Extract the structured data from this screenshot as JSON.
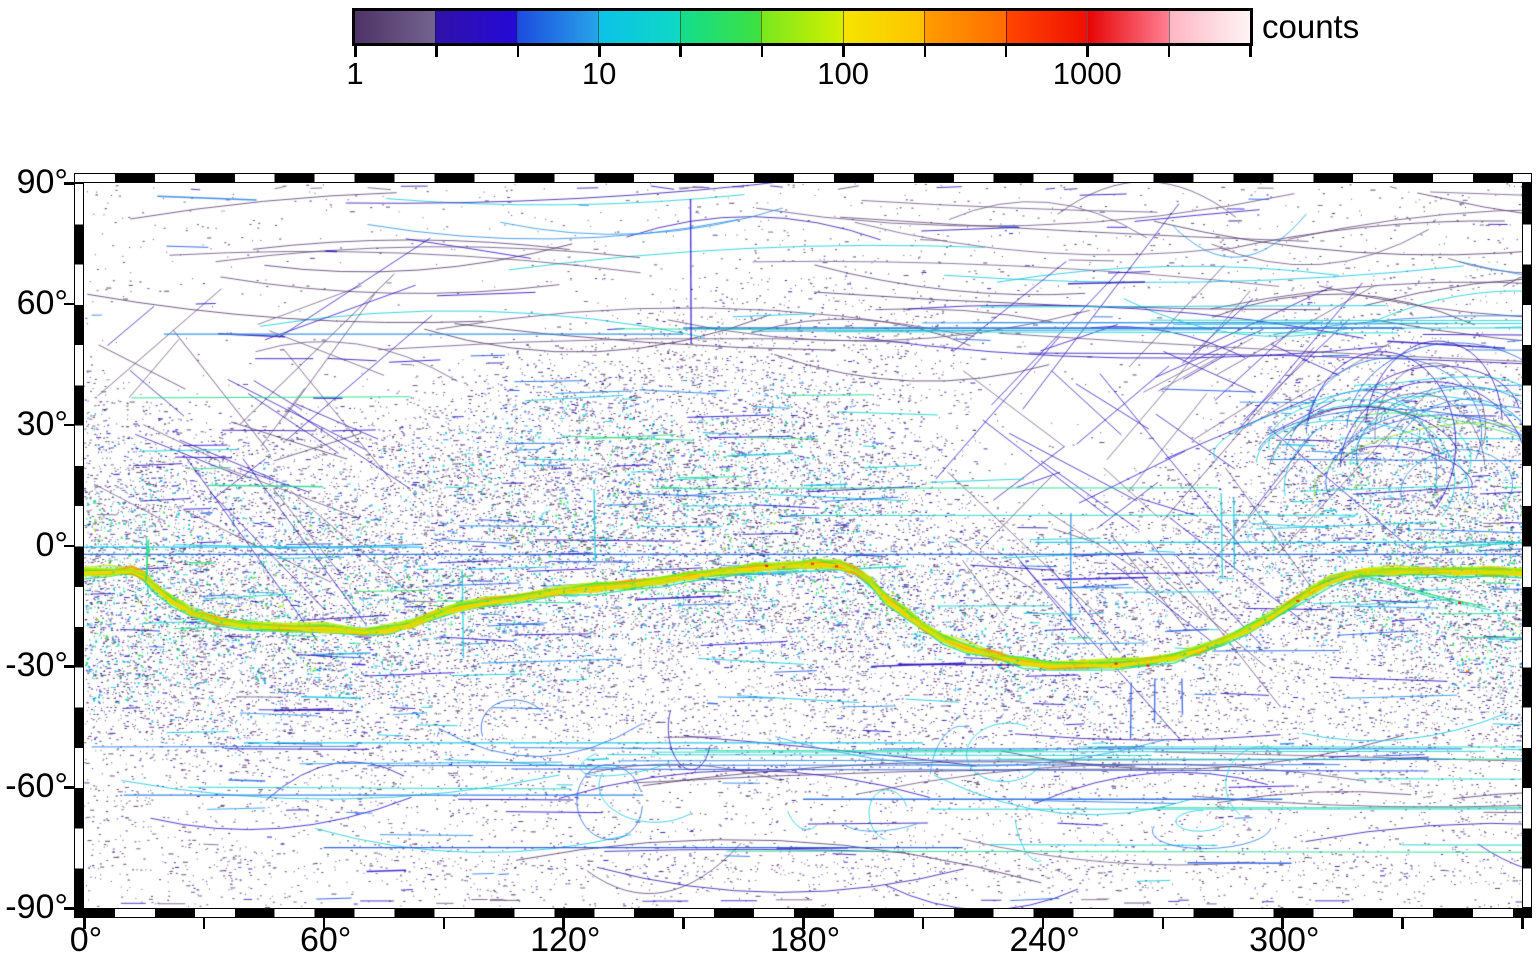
{
  "colorbar": {
    "label": "counts",
    "scale": "log",
    "domain": [
      1,
      4642
    ],
    "segment_count": 11,
    "segments_per_decade": 3,
    "major_tick_values": [
      1,
      10,
      100,
      1000
    ],
    "major_tick_labels": [
      "1",
      "10",
      "100",
      "1000"
    ],
    "major_tick_segment_index": [
      0,
      3,
      6,
      9
    ],
    "segments": [
      [
        "#4e3366",
        "#74638f"
      ],
      [
        "#3012a8",
        "#2509d8"
      ],
      [
        "#1c4ce0",
        "#28a4e8"
      ],
      [
        "#0cc2e8",
        "#0fd9c4"
      ],
      [
        "#12dd8e",
        "#3fe13f"
      ],
      [
        "#79e81e",
        "#d4ef00"
      ],
      [
        "#f4e400",
        "#ffc300"
      ],
      [
        "#ff9d00",
        "#ff6c00"
      ],
      [
        "#ff4500",
        "#ef1000"
      ],
      [
        "#e60404",
        "#ff8095"
      ],
      [
        "#ffb6c4",
        "#fdf4f5"
      ]
    ]
  },
  "axes": {
    "x": {
      "range": [
        0,
        360
      ],
      "tick_step_deg": 30,
      "label_step_deg": 60,
      "labels": [
        "0°",
        "60°",
        "120°",
        "180°",
        "240°",
        "300°"
      ],
      "checker_deg": 10
    },
    "y": {
      "range": [
        -90,
        90
      ],
      "tick_step_deg": 30,
      "labels": [
        "90°",
        "60°",
        "30°",
        "0°",
        "-30°",
        "-60°",
        "-90°"
      ],
      "checker_deg": 10
    }
  },
  "chart_data": {
    "type": "heatmap",
    "title": "",
    "colorbar_label": "counts",
    "value_scale": "log",
    "value_range": [
      1,
      4642
    ],
    "x_ticks_deg": [
      0,
      60,
      120,
      180,
      240,
      300
    ],
    "y_ticks_deg": [
      90,
      60,
      30,
      0,
      -30,
      -60,
      -90
    ],
    "grid": false,
    "description": "Coverage-count map over longitude 0-360 deg and latitude -90..90 deg. Sparse violet/navy single counts near the poles, dense blue-cyan speckle and track streaks at mid latitudes, and a bright green-yellow band of very high counts (tens to hundreds, with a few red/orange pixels near 1000) winding between latitude -4 and -30.",
    "band_track": {
      "comment": "centerline of the bright high-count band, [lon_deg, lat_deg]",
      "points": [
        [
          0,
          -6.6
        ],
        [
          6,
          -6.4
        ],
        [
          12,
          -6.2
        ],
        [
          15,
          -7.5
        ],
        [
          18,
          -10.5
        ],
        [
          22,
          -13.5
        ],
        [
          27,
          -16.5
        ],
        [
          33,
          -18.5
        ],
        [
          40,
          -19.8
        ],
        [
          50,
          -20.3
        ],
        [
          60,
          -20.6
        ],
        [
          70,
          -21.2
        ],
        [
          76,
          -21.0
        ],
        [
          82,
          -19.4
        ],
        [
          88,
          -17.0
        ],
        [
          94,
          -15.2
        ],
        [
          100,
          -14.2
        ],
        [
          108,
          -13.0
        ],
        [
          119,
          -11.3
        ],
        [
          128,
          -10.4
        ],
        [
          136,
          -9.8
        ],
        [
          145,
          -8.6
        ],
        [
          152,
          -7.5
        ],
        [
          160,
          -6.4
        ],
        [
          168,
          -5.5
        ],
        [
          176,
          -4.9
        ],
        [
          183,
          -4.5
        ],
        [
          189,
          -4.8
        ],
        [
          193,
          -6.0
        ],
        [
          197,
          -9.0
        ],
        [
          201,
          -13.3
        ],
        [
          206,
          -17.0
        ],
        [
          210,
          -20.0
        ],
        [
          215,
          -23.0
        ],
        [
          221,
          -25.2
        ],
        [
          228,
          -27.3
        ],
        [
          235,
          -28.8
        ],
        [
          242,
          -29.8
        ],
        [
          250,
          -29.6
        ],
        [
          258,
          -29.4
        ],
        [
          266,
          -28.8
        ],
        [
          273,
          -27.6
        ],
        [
          279,
          -26.0
        ],
        [
          285,
          -23.6
        ],
        [
          291,
          -20.9
        ],
        [
          297,
          -17.8
        ],
        [
          303,
          -13.9
        ],
        [
          308,
          -10.9
        ],
        [
          312,
          -8.8
        ],
        [
          316,
          -7.4
        ],
        [
          321,
          -6.7
        ],
        [
          328,
          -6.3
        ],
        [
          336,
          -6.2
        ],
        [
          344,
          -6.4
        ],
        [
          352,
          -6.5
        ],
        [
          360,
          -6.6
        ]
      ]
    },
    "band_spur": [
      [
        15.5,
        -9
      ],
      [
        15.8,
        -4
      ],
      [
        16.2,
        1.5
      ]
    ],
    "band_branch": [
      [
        319,
        -7.2
      ],
      [
        327,
        -9.2
      ],
      [
        335,
        -11.6
      ],
      [
        343,
        -13.6
      ],
      [
        351,
        -15.2
      ]
    ],
    "hot_spots": [
      [
        170.5,
        -4.8,
        900
      ],
      [
        174.8,
        -5.2,
        1800
      ],
      [
        182,
        -4.3,
        1300
      ],
      [
        188,
        -4.9,
        700
      ],
      [
        258,
        -29.1,
        800
      ],
      [
        266,
        -29.6,
        1100
      ],
      [
        303.5,
        -13.5,
        600
      ],
      [
        344,
        -14,
        900
      ],
      [
        346,
        -31,
        400
      ]
    ],
    "density_blobs": [
      [
        165,
        22,
        40,
        18,
        0.35
      ],
      [
        185,
        -12,
        28,
        14,
        0.3
      ],
      [
        330,
        20,
        34,
        18,
        0.45
      ],
      [
        348,
        -12,
        26,
        14,
        0.3
      ],
      [
        18,
        -22,
        30,
        16,
        0.3
      ],
      [
        70,
        -18,
        50,
        18,
        0.3
      ],
      [
        115,
        25,
        28,
        14,
        0.25
      ],
      [
        255,
        -27,
        30,
        12,
        0.25
      ],
      [
        262,
        28,
        36,
        20,
        -0.42
      ],
      [
        233,
        12,
        22,
        16,
        -0.3
      ],
      [
        62,
        45,
        30,
        14,
        -0.25
      ],
      [
        10,
        42,
        26,
        14,
        -0.22
      ],
      [
        160,
        -33,
        26,
        9,
        -0.22
      ],
      [
        300,
        -27,
        36,
        10,
        -0.25
      ],
      [
        105,
        55,
        40,
        12,
        -0.15
      ]
    ],
    "explicit_streaks": [
      [
        238,
        360,
        0.8,
        12
      ],
      [
        0,
        85,
        -0.4,
        10
      ],
      [
        20,
        150,
        52.5,
        8
      ],
      [
        150,
        330,
        54,
        6
      ],
      [
        40,
        210,
        -49,
        10
      ],
      [
        200,
        345,
        -50.5,
        8
      ],
      [
        10,
        140,
        -62,
        7
      ],
      [
        180,
        300,
        -63,
        6
      ],
      [
        60,
        220,
        -75,
        5
      ],
      [
        0,
        360,
        -2.2,
        6
      ]
    ],
    "vertical_streaks": [
      [
        16,
        -12,
        2,
        20
      ],
      [
        95,
        -28,
        -6,
        14
      ],
      [
        128,
        -4,
        14,
        12
      ],
      [
        152,
        50,
        86,
        4
      ],
      [
        247,
        -20,
        8,
        8
      ],
      [
        262,
        -48,
        -34,
        5
      ],
      [
        268,
        -44,
        -33,
        5
      ],
      [
        275,
        -42,
        -33,
        5
      ],
      [
        285,
        -8,
        13,
        16
      ],
      [
        288,
        -6,
        12,
        12
      ]
    ],
    "latitude_density_profile": {
      "lats": [
        -90,
        -80,
        -60,
        -40,
        -20,
        0,
        20,
        40,
        60,
        80,
        90
      ],
      "relative_density": [
        0.02,
        0.2,
        0.12,
        0.45,
        0.8,
        0.85,
        0.6,
        0.3,
        0.12,
        0.05,
        0.02
      ]
    },
    "render_hints": {
      "seed": 1337,
      "dot_samples": 90000,
      "dash_samples": 14000,
      "track_count": 950,
      "long_streak_count": 38,
      "north_arc_count": 60,
      "south_arc_count": 30,
      "ne_cross_count": 60,
      "nw_cross_count": 35,
      "bundle_arc_count": 26,
      "bottom_ellipse_count": 14,
      "band_strands": 18,
      "band_dots": 300,
      "polar_band_lat": -80
    }
  }
}
